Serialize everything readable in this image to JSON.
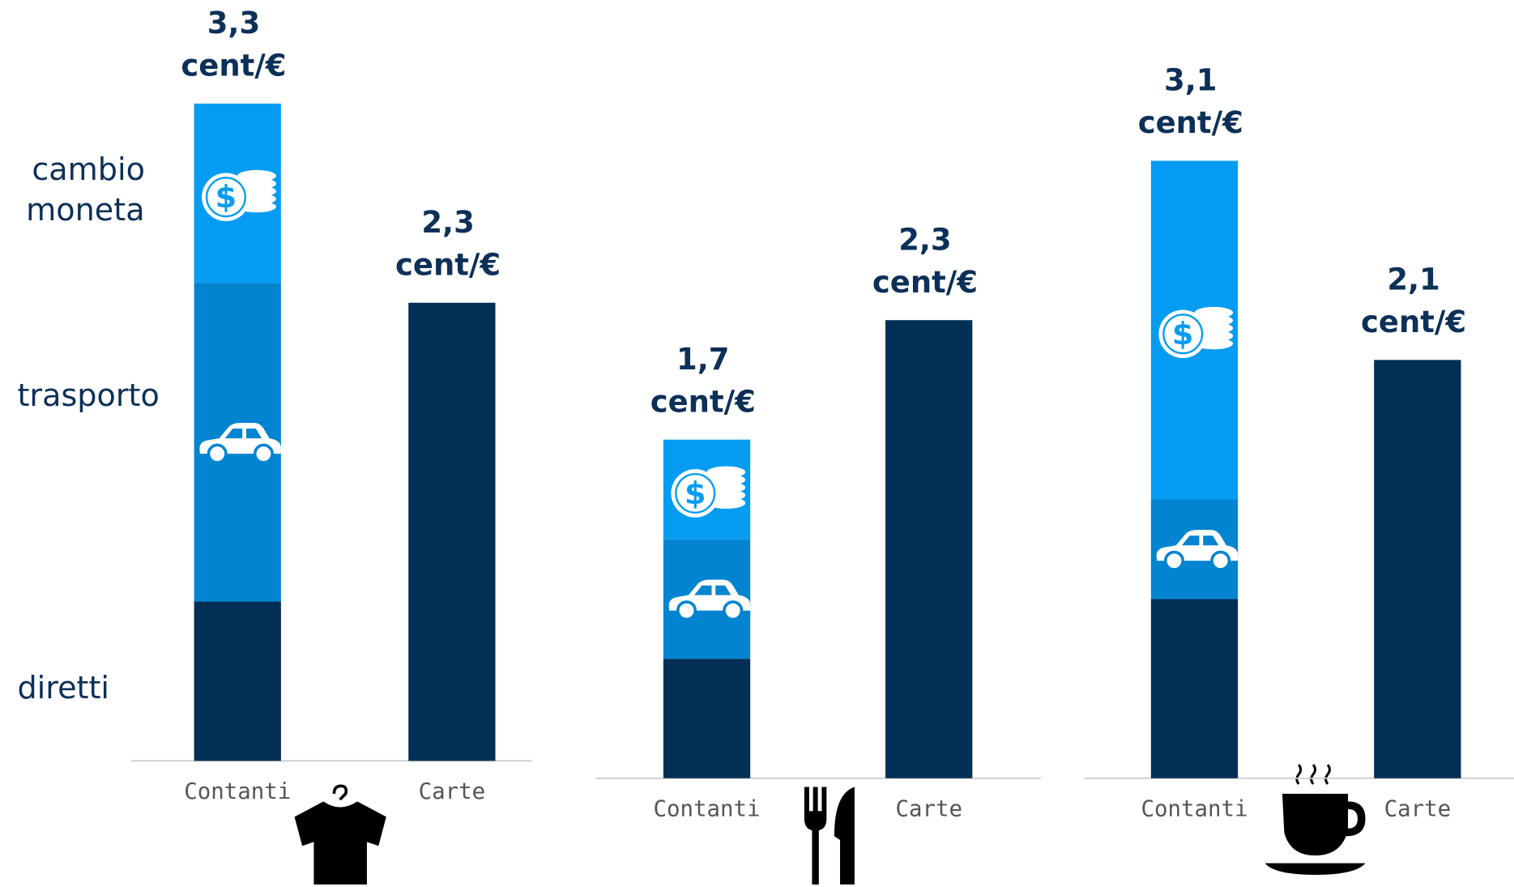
{
  "chart_data": [
    {
      "type": "stacked_bar",
      "categories": [
        "Contanti",
        "Carte"
      ],
      "ylim": [
        0,
        3.5
      ],
      "series": [
        {
          "name": "diretti",
          "color": "#022f55",
          "values": [
            0.8,
            2.3
          ]
        },
        {
          "name": "trasporto",
          "color": "#0284d0",
          "values": [
            1.6,
            null
          ]
        },
        {
          "name": "cambio moneta",
          "color": "#069cf1",
          "values": [
            0.9,
            null
          ]
        }
      ],
      "totals": [
        3.3,
        2.3
      ],
      "total_labels": [
        "3,3 cent/€",
        "2,3 cent/€"
      ]
    },
    {
      "type": "stacked_bar",
      "categories": [
        "Contanti",
        "Carte"
      ],
      "ylim": [
        0,
        3.5
      ],
      "series": [
        {
          "color": "#022f55",
          "values": [
            0.6,
            2.3
          ]
        },
        {
          "color": "#0284d0",
          "values": [
            0.6,
            null
          ]
        },
        {
          "color": "#069cf1",
          "values": [
            0.5,
            null
          ]
        }
      ],
      "totals": [
        1.7,
        2.3
      ],
      "total_labels": [
        "1,7 cent/€",
        "2,3 cent/€"
      ]
    },
    {
      "type": "stacked_bar",
      "categories": [
        "Contanti",
        "Carte"
      ],
      "ylim": [
        0,
        3.5
      ],
      "series": [
        {
          "color": "#022f55",
          "values": [
            0.9,
            2.1
          ]
        },
        {
          "color": "#0284d0",
          "values": [
            0.5,
            null
          ]
        },
        {
          "color": "#069cf1",
          "values": [
            1.7,
            null
          ]
        }
      ],
      "totals": [
        3.1,
        2.1
      ],
      "total_labels": [
        "3,1 cent/€",
        "2,1 cent/€"
      ]
    }
  ]
}
